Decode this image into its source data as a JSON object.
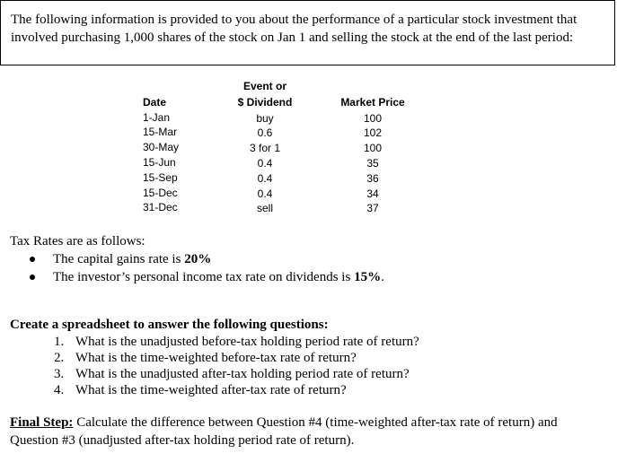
{
  "intro": {
    "text": "The following information is provided to you about the performance of a particular stock investment that involved purchasing 1,000 shares of the stock on Jan 1 and selling the stock at the end of the last period:"
  },
  "table": {
    "headers": {
      "date": "Date",
      "event_line1": "Event or",
      "event_line2": "$ Dividend",
      "price": "Market Price"
    },
    "rows": [
      {
        "date": "1-Jan",
        "event": "buy",
        "price": "100"
      },
      {
        "date": "15-Mar",
        "event": "0.6",
        "price": "102"
      },
      {
        "date": "30-May",
        "event": "3 for 1",
        "price": "100"
      },
      {
        "date": "15-Jun",
        "event": "0.4",
        "price": "35"
      },
      {
        "date": "15-Sep",
        "event": "0.4",
        "price": "36"
      },
      {
        "date": "15-Dec",
        "event": "0.4",
        "price": "34"
      },
      {
        "date": "31-Dec",
        "event": "sell",
        "price": "37"
      }
    ]
  },
  "tax": {
    "heading": "Tax Rates are as follows:",
    "bullets": [
      {
        "before": "The capital gains rate is ",
        "bold": "20%",
        "after": ""
      },
      {
        "before": "The investor’s personal income tax rate on dividends is ",
        "bold": "15%",
        "after": "."
      }
    ]
  },
  "questions": {
    "heading": "Create a spreadsheet to answer the following questions:",
    "items": [
      {
        "num": "1.",
        "text": "What is the unadjusted before-tax holding period rate of return?"
      },
      {
        "num": "2.",
        "text": "What is the time-weighted before-tax rate of return?"
      },
      {
        "num": "3.",
        "text": "What is the unadjusted after-tax holding period rate of return?"
      },
      {
        "num": "4.",
        "text": "What is the time-weighted after-tax rate of return?"
      }
    ]
  },
  "final": {
    "label": "Final Step:",
    "text": " Calculate the difference between Question #4 (time-weighted after-tax rate of return) and Question #3 (unadjusted after-tax holding period rate of return)."
  }
}
